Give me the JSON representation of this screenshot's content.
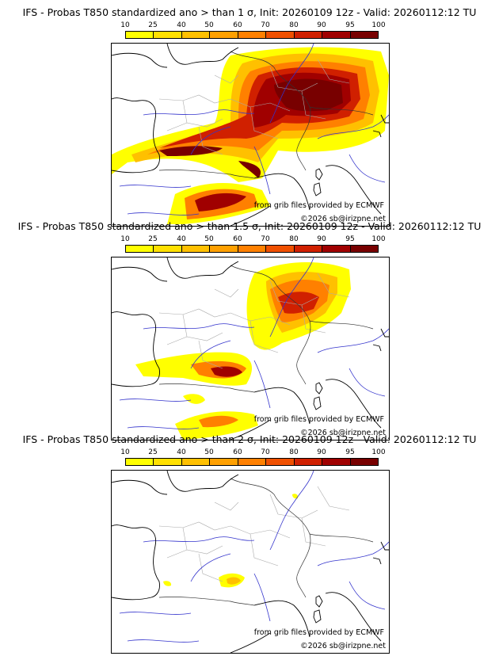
{
  "panels": [
    {
      "title": "IFS - Probas T850  standardized ano > than 1 σ, Init: 20260109 12z - Valid: 20260112:12 TU",
      "threshold_sigma": 1
    },
    {
      "title": "IFS - Probas T850  standardized ano > than 1.5 σ, Init: 20260109 12z - Valid: 20260112:12 TU",
      "threshold_sigma": 1.5
    },
    {
      "title": "IFS - Probas T850  standardized ano > than 2 σ, Init: 20260109 12z - Valid: 20260112:12 TU",
      "threshold_sigma": 2
    }
  ],
  "colorbar": {
    "ticks": [
      "10",
      "25",
      "40",
      "50",
      "60",
      "70",
      "80",
      "90",
      "95",
      "100"
    ],
    "colors": [
      "#ffff00",
      "#ffe000",
      "#ffc000",
      "#ffa000",
      "#ff8000",
      "#f05000",
      "#d02000",
      "#a00000",
      "#780000"
    ]
  },
  "credits": {
    "source": "from grib files provided by ECMWF",
    "copyright": "©2026 sb@irizpne.net"
  },
  "map_colors": {
    "coast": "#000000",
    "rivers": "#3333cc",
    "borders": "#333333",
    "regions": "#aaaaaa"
  }
}
